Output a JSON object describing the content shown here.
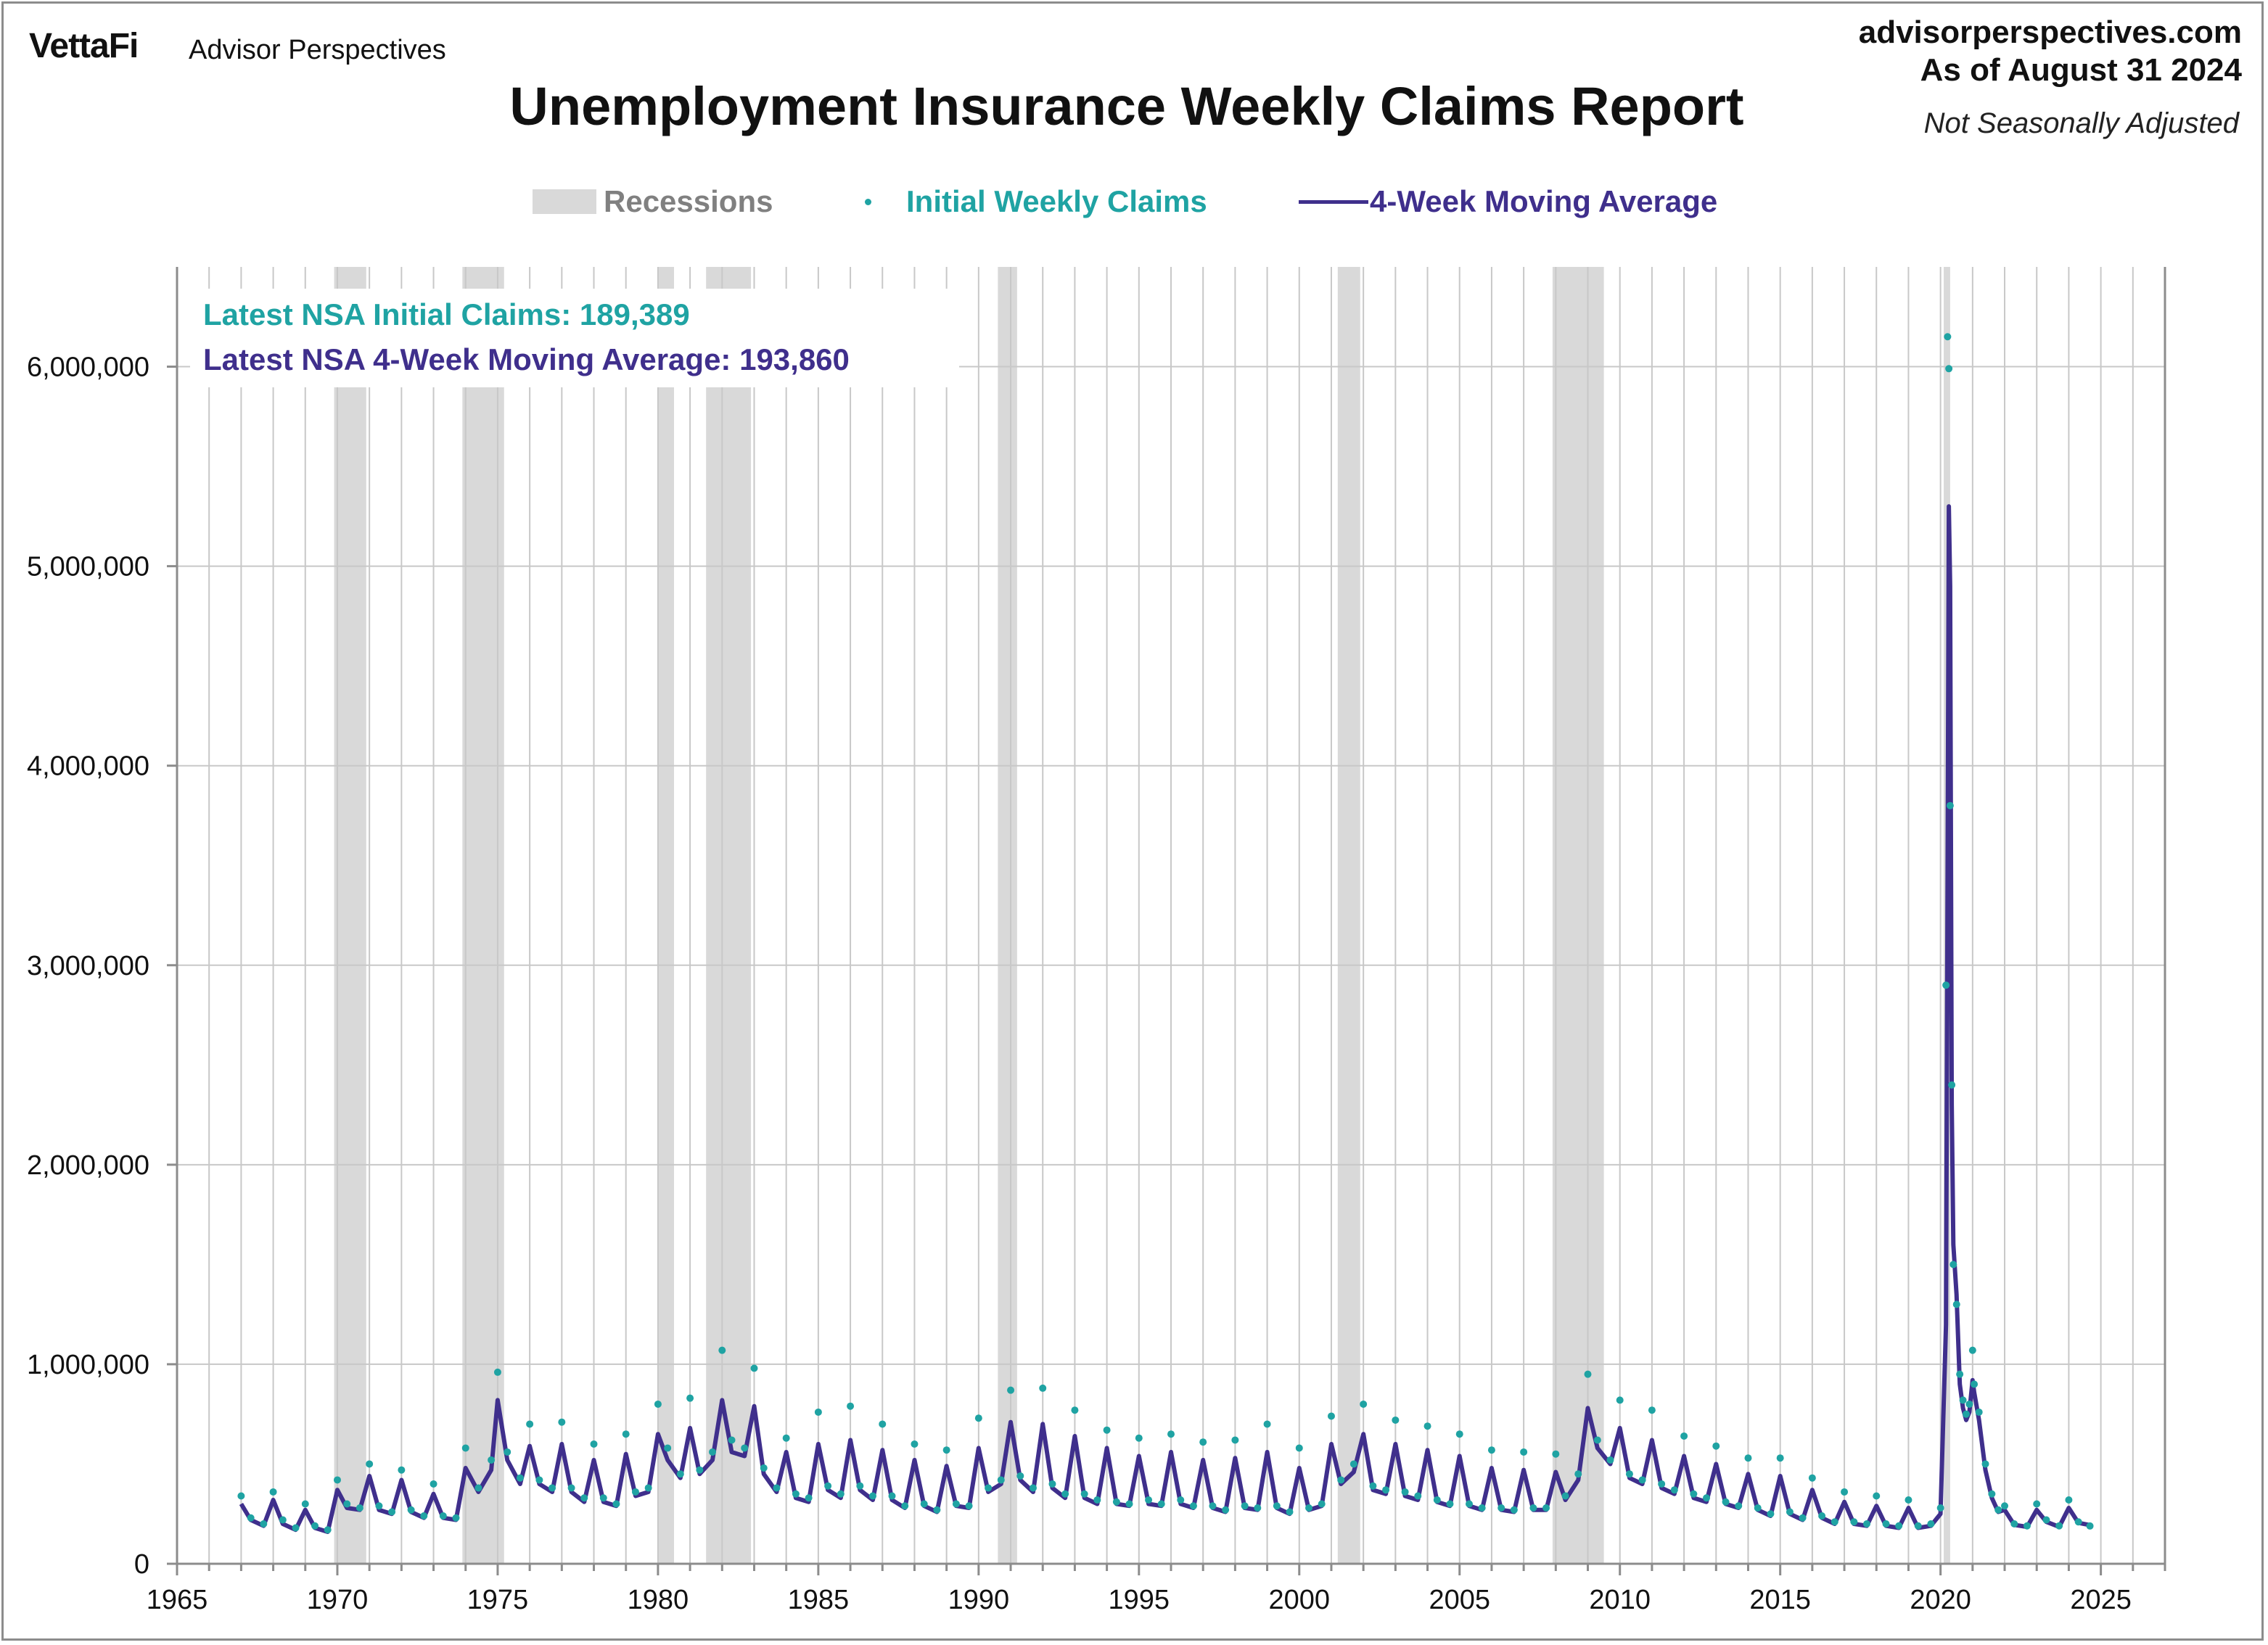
{
  "header": {
    "brand": "VettaFi",
    "brand_sub": "Advisor Perspectives",
    "site": "advisorperspectives.com",
    "as_of": "As of August 31 2024",
    "adjustment": "Not Seasonally Adjusted"
  },
  "colors": {
    "recession": "#d9d9d9",
    "initial_claims": "#1fa3a3",
    "moving_average": "#3f2f8c",
    "grid": "#c8c8c8"
  },
  "chart_data": {
    "type": "line",
    "title": "Unemployment Insurance Weekly Claims Report",
    "xlabel": "",
    "ylabel": "",
    "xlim": [
      1965,
      2027
    ],
    "ylim": [
      0,
      6500000
    ],
    "x_ticks": [
      1965,
      1970,
      1975,
      1980,
      1985,
      1990,
      1995,
      2000,
      2005,
      2010,
      2015,
      2020,
      2025
    ],
    "y_ticks": [
      0,
      1000000,
      2000000,
      3000000,
      4000000,
      5000000,
      6000000
    ],
    "y_tick_labels": [
      "0",
      "1,000,000",
      "2,000,000",
      "3,000,000",
      "4,000,000",
      "5,000,000",
      "6,000,000"
    ],
    "grid": true,
    "legend": {
      "placement": "top",
      "entries": [
        "Recessions",
        "Initial Weekly Claims",
        "4-Week Moving Average"
      ]
    },
    "annotations": {
      "latest_claims": "Latest NSA Initial Claims: 189,389",
      "latest_ma": "Latest NSA 4-Week Moving Average: 193,860"
    },
    "recessions": [
      [
        1969.9,
        1970.9
      ],
      [
        1973.9,
        1975.2
      ],
      [
        1980.0,
        1980.5
      ],
      [
        1981.5,
        1982.9
      ],
      [
        1990.6,
        1991.2
      ],
      [
        2001.2,
        2001.9
      ],
      [
        2007.9,
        2009.5
      ],
      [
        2020.1,
        2020.3
      ]
    ],
    "series": [
      {
        "name": "Initial Weekly Claims",
        "x": [
          1967.0,
          1967.3,
          1967.7,
          1968.0,
          1968.3,
          1968.7,
          1969.0,
          1969.3,
          1969.7,
          1970.0,
          1970.3,
          1970.7,
          1971.0,
          1971.3,
          1971.7,
          1972.0,
          1972.3,
          1972.7,
          1973.0,
          1973.3,
          1973.7,
          1974.0,
          1974.4,
          1974.8,
          1975.0,
          1975.3,
          1975.7,
          1976.0,
          1976.3,
          1976.7,
          1977.0,
          1977.3,
          1977.7,
          1978.0,
          1978.3,
          1978.7,
          1979.0,
          1979.3,
          1979.7,
          1980.0,
          1980.3,
          1980.7,
          1981.0,
          1981.3,
          1981.7,
          1982.0,
          1982.3,
          1982.7,
          1983.0,
          1983.3,
          1983.7,
          1984.0,
          1984.3,
          1984.7,
          1985.0,
          1985.3,
          1985.7,
          1986.0,
          1986.3,
          1986.7,
          1987.0,
          1987.3,
          1987.7,
          1988.0,
          1988.3,
          1988.7,
          1989.0,
          1989.3,
          1989.7,
          1990.0,
          1990.3,
          1990.7,
          1991.0,
          1991.3,
          1991.7,
          1992.0,
          1992.3,
          1992.7,
          1993.0,
          1993.3,
          1993.7,
          1994.0,
          1994.3,
          1994.7,
          1995.0,
          1995.3,
          1995.7,
          1996.0,
          1996.3,
          1996.7,
          1997.0,
          1997.3,
          1997.7,
          1998.0,
          1998.3,
          1998.7,
          1999.0,
          1999.3,
          1999.7,
          2000.0,
          2000.3,
          2000.7,
          2001.0,
          2001.3,
          2001.7,
          2002.0,
          2002.3,
          2002.7,
          2003.0,
          2003.3,
          2003.7,
          2004.0,
          2004.3,
          2004.7,
          2005.0,
          2005.3,
          2005.7,
          2006.0,
          2006.3,
          2006.7,
          2007.0,
          2007.3,
          2007.7,
          2008.0,
          2008.3,
          2008.7,
          2009.0,
          2009.3,
          2009.7,
          2010.0,
          2010.3,
          2010.7,
          2011.0,
          2011.3,
          2011.7,
          2012.0,
          2012.3,
          2012.7,
          2013.0,
          2013.3,
          2013.7,
          2014.0,
          2014.3,
          2014.7,
          2015.0,
          2015.3,
          2015.7,
          2016.0,
          2016.3,
          2016.7,
          2017.0,
          2017.3,
          2017.7,
          2018.0,
          2018.3,
          2018.7,
          2019.0,
          2019.3,
          2019.7,
          2020.0,
          2020.17,
          2020.22,
          2020.26,
          2020.3,
          2020.35,
          2020.4,
          2020.5,
          2020.6,
          2020.7,
          2020.8,
          2020.9,
          2021.0,
          2021.05,
          2021.2,
          2021.4,
          2021.6,
          2021.8,
          2022.0,
          2022.3,
          2022.7,
          2023.0,
          2023.3,
          2023.7,
          2024.0,
          2024.3,
          2024.66
        ],
        "values": [
          340000,
          230000,
          200000,
          360000,
          220000,
          180000,
          300000,
          190000,
          170000,
          420000,
          300000,
          280000,
          500000,
          290000,
          260000,
          470000,
          270000,
          240000,
          400000,
          240000,
          230000,
          580000,
          380000,
          520000,
          960000,
          560000,
          430000,
          700000,
          420000,
          380000,
          710000,
          380000,
          330000,
          600000,
          330000,
          300000,
          650000,
          360000,
          380000,
          800000,
          580000,
          450000,
          830000,
          470000,
          560000,
          1070000,
          620000,
          580000,
          980000,
          480000,
          380000,
          630000,
          350000,
          330000,
          760000,
          390000,
          350000,
          790000,
          390000,
          340000,
          700000,
          340000,
          290000,
          600000,
          300000,
          270000,
          570000,
          300000,
          290000,
          730000,
          380000,
          420000,
          870000,
          440000,
          380000,
          880000,
          400000,
          350000,
          770000,
          350000,
          320000,
          670000,
          310000,
          300000,
          630000,
          320000,
          300000,
          650000,
          320000,
          290000,
          610000,
          290000,
          270000,
          620000,
          290000,
          280000,
          700000,
          290000,
          260000,
          580000,
          280000,
          300000,
          740000,
          420000,
          500000,
          800000,
          390000,
          370000,
          720000,
          360000,
          340000,
          690000,
          320000,
          300000,
          650000,
          300000,
          280000,
          570000,
          280000,
          270000,
          560000,
          280000,
          280000,
          550000,
          340000,
          450000,
          950000,
          620000,
          520000,
          820000,
          450000,
          420000,
          770000,
          400000,
          370000,
          640000,
          350000,
          330000,
          590000,
          310000,
          290000,
          530000,
          280000,
          250000,
          530000,
          260000,
          230000,
          430000,
          240000,
          210000,
          360000,
          210000,
          200000,
          340000,
          200000,
          190000,
          320000,
          190000,
          200000,
          280000,
          2900000,
          6150000,
          5990000,
          3800000,
          2400000,
          1500000,
          1300000,
          950000,
          820000,
          750000,
          800000,
          1070000,
          900000,
          760000,
          500000,
          350000,
          270000,
          290000,
          200000,
          190000,
          300000,
          220000,
          190000,
          320000,
          210000,
          189389
        ]
      },
      {
        "name": "4-Week Moving Average",
        "x": [
          1967.0,
          1967.3,
          1967.7,
          1968.0,
          1968.3,
          1968.7,
          1969.0,
          1969.3,
          1969.7,
          1970.0,
          1970.3,
          1970.7,
          1971.0,
          1971.3,
          1971.7,
          1972.0,
          1972.3,
          1972.7,
          1973.0,
          1973.3,
          1973.7,
          1974.0,
          1974.4,
          1974.8,
          1975.0,
          1975.3,
          1975.7,
          1976.0,
          1976.3,
          1976.7,
          1977.0,
          1977.3,
          1977.7,
          1978.0,
          1978.3,
          1978.7,
          1979.0,
          1979.3,
          1979.7,
          1980.0,
          1980.3,
          1980.7,
          1981.0,
          1981.3,
          1981.7,
          1982.0,
          1982.3,
          1982.7,
          1983.0,
          1983.3,
          1983.7,
          1984.0,
          1984.3,
          1984.7,
          1985.0,
          1985.3,
          1985.7,
          1986.0,
          1986.3,
          1986.7,
          1987.0,
          1987.3,
          1987.7,
          1988.0,
          1988.3,
          1988.7,
          1989.0,
          1989.3,
          1989.7,
          1990.0,
          1990.3,
          1990.7,
          1991.0,
          1991.3,
          1991.7,
          1992.0,
          1992.3,
          1992.7,
          1993.0,
          1993.3,
          1993.7,
          1994.0,
          1994.3,
          1994.7,
          1995.0,
          1995.3,
          1995.7,
          1996.0,
          1996.3,
          1996.7,
          1997.0,
          1997.3,
          1997.7,
          1998.0,
          1998.3,
          1998.7,
          1999.0,
          1999.3,
          1999.7,
          2000.0,
          2000.3,
          2000.7,
          2001.0,
          2001.3,
          2001.7,
          2002.0,
          2002.3,
          2002.7,
          2003.0,
          2003.3,
          2003.7,
          2004.0,
          2004.3,
          2004.7,
          2005.0,
          2005.3,
          2005.7,
          2006.0,
          2006.3,
          2006.7,
          2007.0,
          2007.3,
          2007.7,
          2008.0,
          2008.3,
          2008.7,
          2009.0,
          2009.3,
          2009.7,
          2010.0,
          2010.3,
          2010.7,
          2011.0,
          2011.3,
          2011.7,
          2012.0,
          2012.3,
          2012.7,
          2013.0,
          2013.3,
          2013.7,
          2014.0,
          2014.3,
          2014.7,
          2015.0,
          2015.3,
          2015.7,
          2016.0,
          2016.3,
          2016.7,
          2017.0,
          2017.3,
          2017.7,
          2018.0,
          2018.3,
          2018.7,
          2019.0,
          2019.3,
          2019.7,
          2020.0,
          2020.17,
          2020.22,
          2020.26,
          2020.3,
          2020.35,
          2020.4,
          2020.5,
          2020.6,
          2020.7,
          2020.8,
          2020.9,
          2021.0,
          2021.05,
          2021.2,
          2021.4,
          2021.6,
          2021.8,
          2022.0,
          2022.3,
          2022.7,
          2023.0,
          2023.3,
          2023.7,
          2024.0,
          2024.3,
          2024.66
        ],
        "values": [
          300000,
          220000,
          190000,
          320000,
          200000,
          170000,
          270000,
          180000,
          160000,
          370000,
          280000,
          270000,
          440000,
          270000,
          250000,
          420000,
          260000,
          230000,
          350000,
          230000,
          220000,
          480000,
          360000,
          470000,
          820000,
          520000,
          400000,
          590000,
          400000,
          360000,
          600000,
          360000,
          310000,
          520000,
          310000,
          290000,
          550000,
          340000,
          360000,
          650000,
          520000,
          430000,
          680000,
          450000,
          520000,
          820000,
          560000,
          540000,
          790000,
          450000,
          360000,
          560000,
          330000,
          310000,
          600000,
          370000,
          330000,
          620000,
          370000,
          320000,
          570000,
          320000,
          280000,
          520000,
          290000,
          260000,
          490000,
          290000,
          280000,
          580000,
          360000,
          400000,
          710000,
          420000,
          360000,
          700000,
          380000,
          330000,
          640000,
          330000,
          300000,
          580000,
          300000,
          290000,
          540000,
          300000,
          290000,
          560000,
          300000,
          280000,
          520000,
          280000,
          260000,
          530000,
          280000,
          270000,
          560000,
          280000,
          250000,
          480000,
          270000,
          290000,
          600000,
          400000,
          460000,
          650000,
          370000,
          350000,
          600000,
          340000,
          320000,
          570000,
          310000,
          290000,
          540000,
          290000,
          270000,
          480000,
          270000,
          260000,
          470000,
          270000,
          270000,
          460000,
          320000,
          420000,
          780000,
          580000,
          500000,
          680000,
          430000,
          400000,
          620000,
          380000,
          350000,
          540000,
          330000,
          310000,
          500000,
          300000,
          280000,
          450000,
          270000,
          240000,
          440000,
          250000,
          220000,
          370000,
          230000,
          200000,
          310000,
          200000,
          190000,
          290000,
          190000,
          180000,
          280000,
          180000,
          190000,
          250000,
          1200000,
          3500000,
          5300000,
          4900000,
          2300000,
          1600000,
          1350000,
          900000,
          780000,
          720000,
          760000,
          920000,
          860000,
          720000,
          470000,
          330000,
          260000,
          270000,
          195000,
          185000,
          270000,
          210000,
          185000,
          280000,
          205000,
          193860
        ]
      }
    ]
  }
}
